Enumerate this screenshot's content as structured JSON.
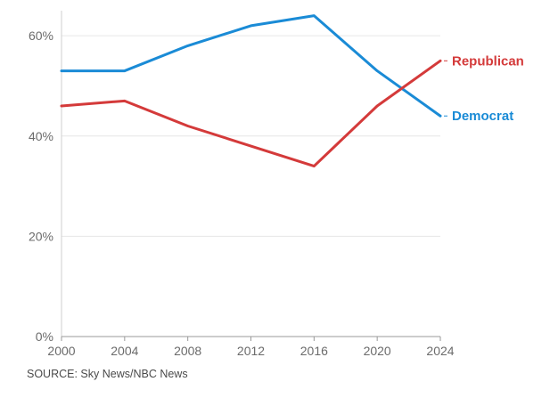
{
  "chart_data": {
    "type": "line",
    "x": [
      2000,
      2004,
      2008,
      2012,
      2016,
      2020,
      2024
    ],
    "ylim": [
      0,
      65
    ],
    "y_ticks": [
      0,
      20,
      40,
      60
    ],
    "y_tick_labels": [
      "0%",
      "20%",
      "40%",
      "60%"
    ],
    "x_tick_labels": [
      "2000",
      "2004",
      "2008",
      "2012",
      "2016",
      "2020",
      "2024"
    ],
    "grid": true,
    "series": [
      {
        "name": "Democrat",
        "color": "#1a8bd6",
        "values": [
          53,
          53,
          58,
          62,
          64,
          53,
          44
        ]
      },
      {
        "name": "Republican",
        "color": "#d43a3a",
        "values": [
          46,
          47,
          42,
          38,
          34,
          46,
          55
        ]
      }
    ]
  },
  "source_text": "SOURCE: Sky News/NBC News"
}
